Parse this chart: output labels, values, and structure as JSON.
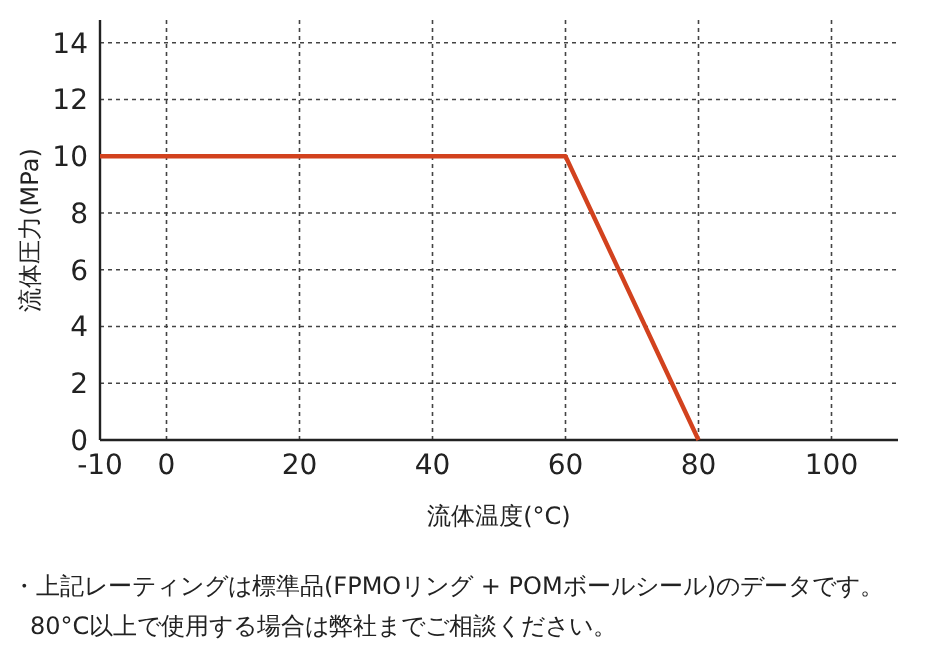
{
  "chart_data": {
    "type": "line",
    "xlabel": "流体温度(°C)",
    "ylabel": "流体圧力(MPa)",
    "annotations": [
      "・上記レーティングは標準品(FPMOリング + POMボールシール)のデータです。",
      "80°C以上で使用する場合は弊社までご相談ください。"
    ],
    "x": [
      -10,
      60,
      80
    ],
    "series": [
      {
        "color": "#d2421e",
        "values": [
          10,
          10,
          0
        ]
      }
    ],
    "xlim": [
      -10,
      110
    ],
    "ylim": [
      0,
      14.8
    ],
    "xticks": [
      -10,
      0,
      20,
      40,
      60,
      80,
      100
    ],
    "yticks": [
      0,
      2,
      4,
      6,
      8,
      10,
      12,
      14
    ],
    "grid": true
  }
}
